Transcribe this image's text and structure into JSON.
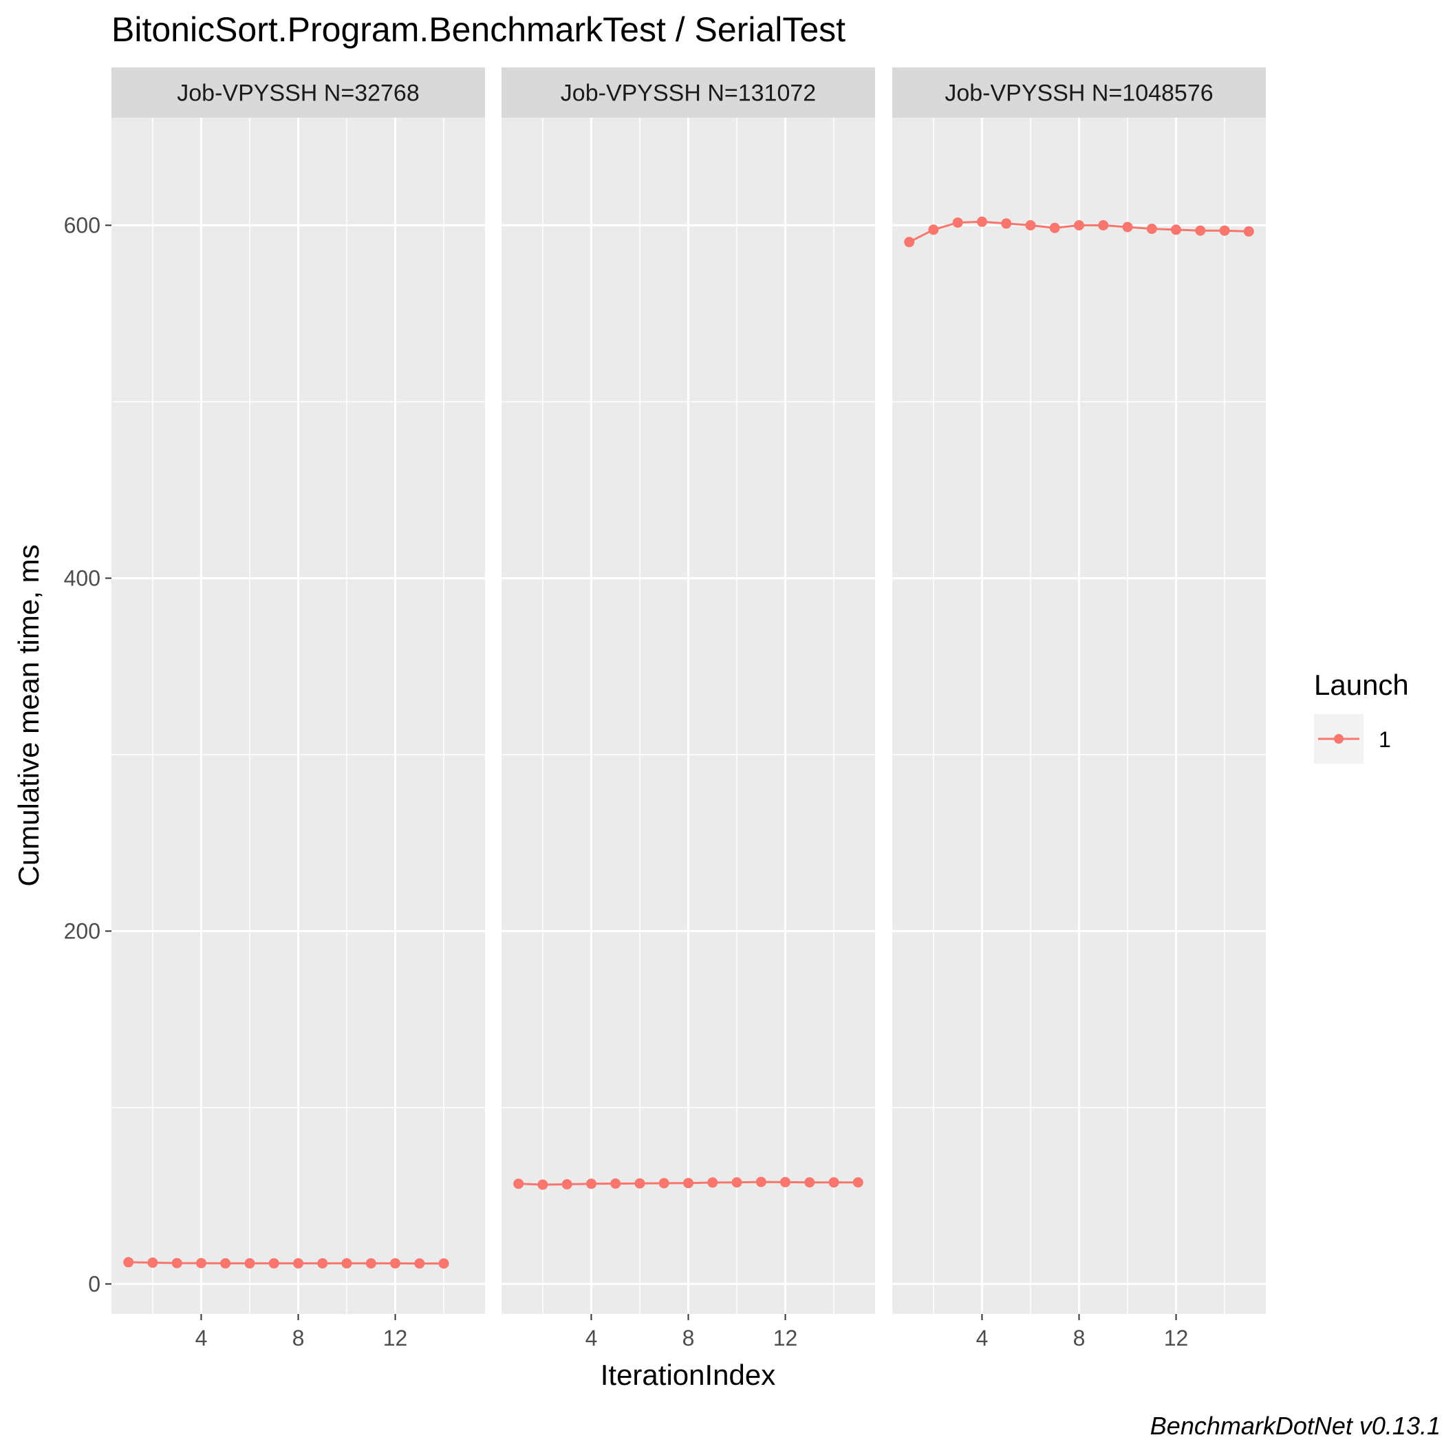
{
  "chart_data": {
    "type": "line",
    "title": "BitonicSort.Program.BenchmarkTest / SerialTest",
    "xlabel": "IterationIndex",
    "ylabel": "Cumulative mean time, ms",
    "caption": "BenchmarkDotNet v0.13.1",
    "xlim": [
      0.3,
      15.7
    ],
    "ylim": [
      -17,
      661
    ],
    "x_ticks": [
      4,
      8,
      12
    ],
    "y_ticks": [
      0,
      200,
      400,
      600
    ],
    "grid": true,
    "legend": {
      "title": "Launch",
      "position": "right",
      "entries": [
        "1"
      ]
    },
    "series_color": "#F8766D",
    "facets": [
      {
        "label": "Job-VPYSSH N=32768",
        "series": [
          {
            "name": "1",
            "x": [
              1,
              2,
              3,
              4,
              5,
              6,
              7,
              8,
              9,
              10,
              11,
              12,
              13,
              14
            ],
            "y": [
              12.3,
              12.1,
              11.8,
              11.8,
              11.7,
              11.7,
              11.7,
              11.7,
              11.7,
              11.7,
              11.7,
              11.7,
              11.6,
              11.6
            ]
          }
        ]
      },
      {
        "label": "Job-VPYSSH N=131072",
        "series": [
          {
            "name": "1",
            "x": [
              1,
              2,
              3,
              4,
              5,
              6,
              7,
              8,
              9,
              10,
              11,
              12,
              13,
              14,
              15
            ],
            "y": [
              56.8,
              56.3,
              56.5,
              56.8,
              56.9,
              57.0,
              57.1,
              57.2,
              57.5,
              57.6,
              57.8,
              57.7,
              57.6,
              57.6,
              57.6
            ]
          }
        ]
      },
      {
        "label": "Job-VPYSSH N=1048576",
        "series": [
          {
            "name": "1",
            "x": [
              1,
              2,
              3,
              4,
              5,
              6,
              7,
              8,
              9,
              10,
              11,
              12,
              13,
              14,
              15
            ],
            "y": [
              590.5,
              597.5,
              601.5,
              602.0,
              601.0,
              600.0,
              598.5,
              600.0,
              600.0,
              599.0,
              598.0,
              597.5,
              597.0,
              597.0,
              596.5
            ]
          }
        ]
      }
    ]
  }
}
